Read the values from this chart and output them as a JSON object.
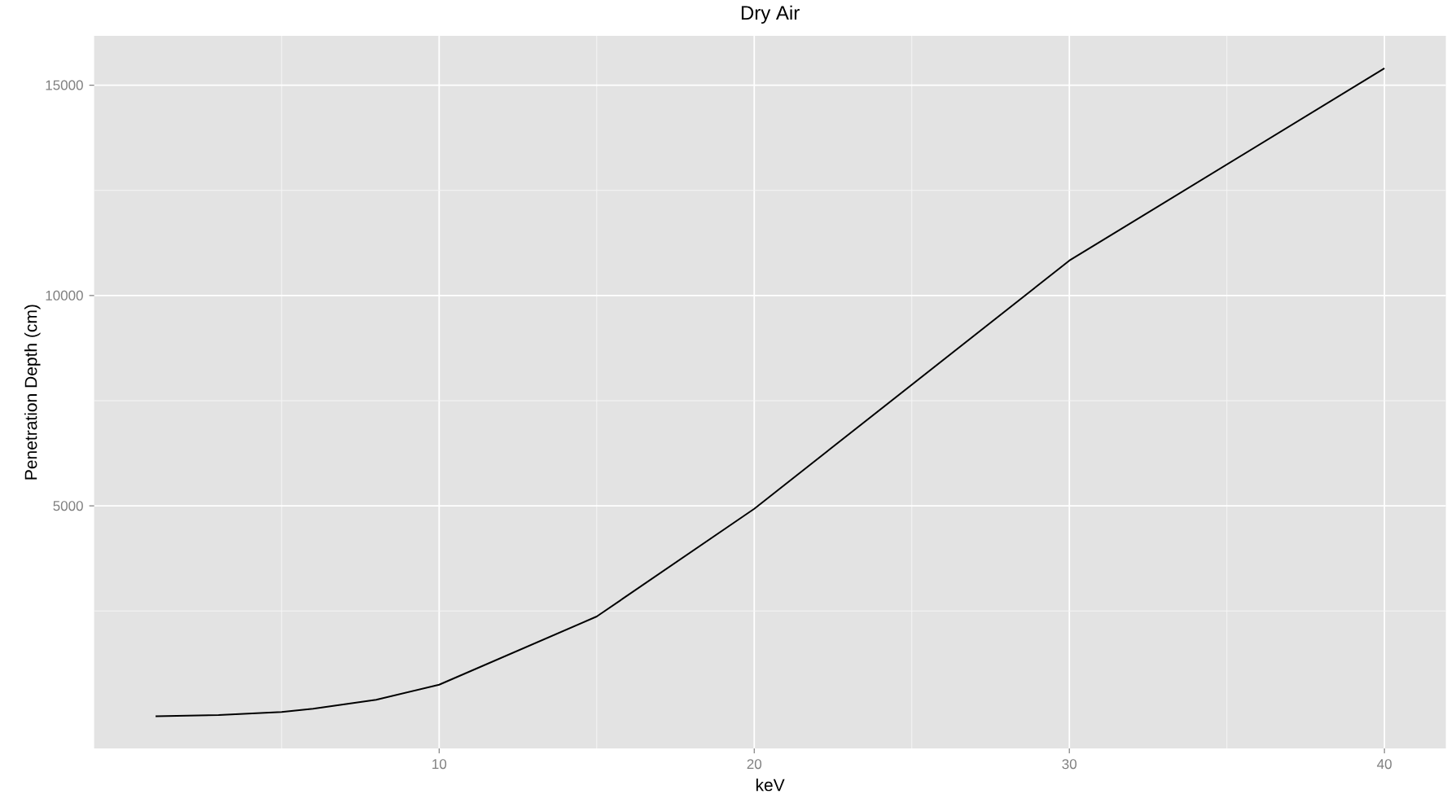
{
  "chart_data": {
    "type": "line",
    "title": "Dry Air",
    "xlabel": "keV",
    "ylabel": "Penetration Depth (cm)",
    "x": [
      1,
      3,
      5,
      6,
      8,
      10,
      15,
      20,
      30,
      40
    ],
    "series": [
      {
        "color": "#000000",
        "values": [
          0,
          30,
          100,
          180,
          390,
          750,
          2370,
          4930,
          10830,
          15400
        ]
      }
    ],
    "xlim": [
      -0.95,
      41.95
    ],
    "ylim": [
      -767,
      16170
    ],
    "xticks": [
      10,
      20,
      30,
      40
    ],
    "yticks": [
      5000,
      10000,
      15000
    ],
    "grid": true,
    "marker": "none",
    "line_style": "solid"
  }
}
